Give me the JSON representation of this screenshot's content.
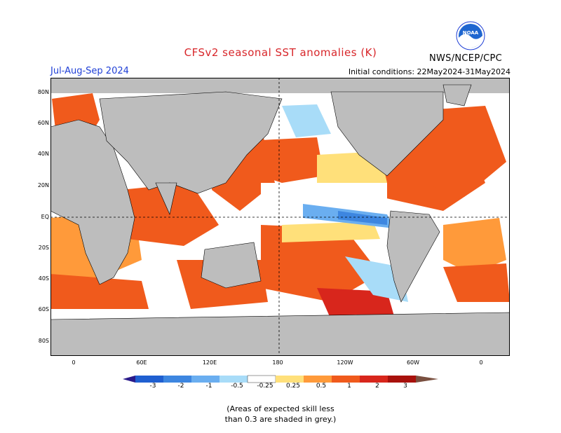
{
  "header": {
    "title": "CFSv2 seasonal SST anomalies (K)",
    "season": "Jul-Aug-Sep 2024",
    "initial_conditions": "Initial conditions: 22May2024-31May2024",
    "agency": "NWS/NCEP/CPC",
    "logo_text": "NOAA"
  },
  "map": {
    "projection": "cylindrical equidistant",
    "lat_labels": [
      "80N",
      "60N",
      "40N",
      "20N",
      "EQ",
      "20S",
      "40S",
      "60S",
      "80S"
    ],
    "lon_labels": [
      "0",
      "60E",
      "120E",
      "180",
      "120W",
      "60W",
      "0"
    ],
    "land_color": "#bdbdbd",
    "no_skill_color": "#bdbdbd"
  },
  "colorbar": {
    "labels": [
      "-3",
      "-2",
      "-1",
      "-0.5",
      "-0.25",
      "0.25",
      "0.5",
      "1",
      "2",
      "3"
    ],
    "colors": [
      "#2a1a8a",
      "#1f5fd0",
      "#3d86e0",
      "#6aaef0",
      "#a8dcf8",
      "#ffffff",
      "#ffe07a",
      "#ff9a3a",
      "#f05a1c",
      "#d8261c",
      "#a8110c",
      "#7a5040"
    ]
  },
  "note": {
    "line1": "(Areas of expected skill less",
    "line2": "than 0.3 are shaded in grey.)"
  }
}
